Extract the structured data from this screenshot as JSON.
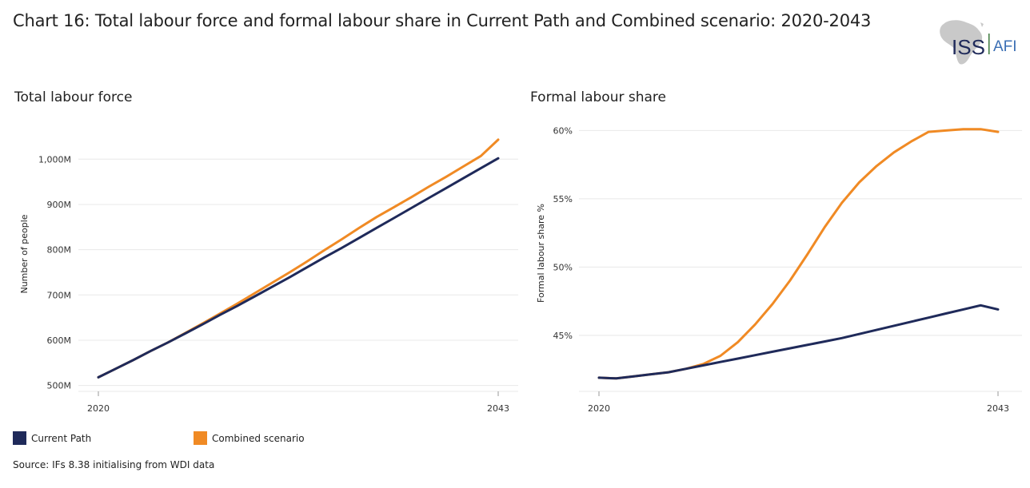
{
  "title": "Chart 16: Total labour force and formal labour share in Current Path and Combined scenario: 2020-2043",
  "logo": {
    "text_main": "ISS",
    "text_secondary": "AFI"
  },
  "colors": {
    "current_path": "#1f2a5a",
    "combined": "#f08a24",
    "grid": "#e8e8e8"
  },
  "legend": [
    {
      "label": "Current Path",
      "color": "#1f2a5a"
    },
    {
      "label": "Combined scenario",
      "color": "#f08a24"
    }
  ],
  "source": "Source: IFs 8.38 initialising from WDI data",
  "chart_data": [
    {
      "type": "line",
      "title": "Total labour force",
      "ylabel": "Number of people",
      "xlabel": "",
      "x": [
        2020,
        2021,
        2022,
        2023,
        2024,
        2025,
        2026,
        2027,
        2028,
        2029,
        2030,
        2031,
        2032,
        2033,
        2034,
        2035,
        2036,
        2037,
        2038,
        2039,
        2040,
        2041,
        2042,
        2043
      ],
      "xticks": [
        "2020",
        "2043"
      ],
      "yticks": [
        {
          "value": 500,
          "label": "500M"
        },
        {
          "value": 600,
          "label": "600M"
        },
        {
          "value": 700,
          "label": "700M"
        },
        {
          "value": 800,
          "label": "800M"
        },
        {
          "value": 900,
          "label": "900M"
        },
        {
          "value": 1000,
          "label": "1,000M"
        }
      ],
      "ylim": [
        487,
        1057
      ],
      "grid": true,
      "series": [
        {
          "name": "Current Path",
          "values": [
            518,
            537,
            556,
            576,
            595,
            615,
            635,
            656,
            676,
            697,
            718,
            739,
            761,
            783,
            804,
            826,
            848,
            870,
            892,
            914,
            936,
            958,
            980,
            1002
          ]
        },
        {
          "name": "Combined scenario",
          "values": [
            518,
            537,
            556,
            576,
            595,
            616,
            637,
            659,
            681,
            704,
            727,
            750,
            774,
            799,
            823,
            848,
            872,
            894,
            916,
            939,
            961,
            984,
            1007,
            1043
          ]
        }
      ]
    },
    {
      "type": "line",
      "title": "Formal labour share",
      "ylabel": "Formal labour share %",
      "xlabel": "",
      "x": [
        2020,
        2021,
        2022,
        2023,
        2024,
        2025,
        2026,
        2027,
        2028,
        2029,
        2030,
        2031,
        2032,
        2033,
        2034,
        2035,
        2036,
        2037,
        2038,
        2039,
        2040,
        2041,
        2042,
        2043
      ],
      "xticks": [
        "2020",
        "2043"
      ],
      "yticks": [
        {
          "value": 45,
          "label": "45%"
        },
        {
          "value": 50,
          "label": "50%"
        },
        {
          "value": 55,
          "label": "55%"
        },
        {
          "value": 60,
          "label": "60%"
        }
      ],
      "ylim": [
        40.9,
        60.2
      ],
      "grid": true,
      "series": [
        {
          "name": "Current Path",
          "values": [
            41.9,
            41.85,
            42.0,
            42.15,
            42.3,
            42.55,
            42.8,
            43.05,
            43.3,
            43.55,
            43.8,
            44.05,
            44.3,
            44.55,
            44.8,
            45.1,
            45.4,
            45.7,
            46.0,
            46.3,
            46.6,
            46.9,
            47.2,
            46.9
          ]
        },
        {
          "name": "Combined scenario",
          "values": [
            41.9,
            41.85,
            42.0,
            42.15,
            42.3,
            42.55,
            42.9,
            43.5,
            44.5,
            45.8,
            47.3,
            49.0,
            50.9,
            52.9,
            54.7,
            56.2,
            57.4,
            58.4,
            59.2,
            59.9,
            60.0,
            60.1,
            60.1,
            59.9
          ]
        }
      ]
    }
  ]
}
